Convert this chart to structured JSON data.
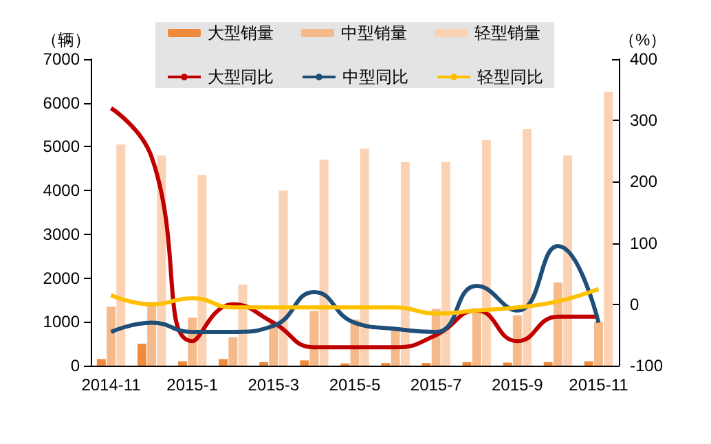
{
  "chart_data": {
    "type": "bar",
    "categories": [
      "2014-11",
      null,
      "2015-1",
      null,
      "2015-3",
      null,
      "2015-5",
      null,
      "2015-7",
      null,
      "2015-9",
      null,
      "2015-11"
    ],
    "ylabel": "（辆）",
    "y2label": "（%）",
    "ylim": [
      0,
      7000
    ],
    "yticks": [
      0,
      1000,
      2000,
      3000,
      4000,
      5000,
      6000,
      7000
    ],
    "y2lim": [
      -100,
      400
    ],
    "y2ticks": [
      -100,
      0,
      100,
      200,
      300,
      400
    ],
    "legend": "top",
    "grid": false,
    "marker": "none",
    "series": [
      {
        "name": "大型销量",
        "color": "#f08a3c",
        "values": [
          150,
          500,
          100,
          150,
          80,
          120,
          50,
          60,
          60,
          80,
          70,
          80,
          100
        ]
      },
      {
        "name": "中型销量",
        "color": "#f6b98a",
        "values": [
          1350,
          1450,
          1100,
          650,
          1000,
          1250,
          1050,
          850,
          1300,
          1250,
          1150,
          1900,
          1000
        ]
      },
      {
        "name": "轻型销量",
        "color": "#fbd3b4",
        "values": [
          5050,
          4800,
          4350,
          1850,
          4000,
          4700,
          4950,
          4650,
          4650,
          5150,
          5400,
          4800,
          6250
        ]
      },
      {
        "name": "大型同比",
        "type": "line",
        "axis": "y2",
        "color": "#c00000",
        "values": [
          320,
          240,
          -60,
          0,
          -30,
          -70,
          -70,
          -70,
          -50,
          -10,
          -60,
          -20,
          -20
        ]
      },
      {
        "name": "中型同比",
        "type": "line",
        "axis": "y2",
        "color": "#1f4e79",
        "values": [
          -45,
          -30,
          -45,
          -45,
          -35,
          20,
          -30,
          -40,
          -45,
          30,
          -10,
          95,
          -30
        ]
      },
      {
        "name": "轻型同比",
        "type": "line",
        "axis": "y2",
        "color": "#ffc000",
        "values": [
          15,
          0,
          10,
          -5,
          -5,
          -5,
          -5,
          -5,
          -15,
          -10,
          -5,
          5,
          25
        ]
      }
    ]
  }
}
